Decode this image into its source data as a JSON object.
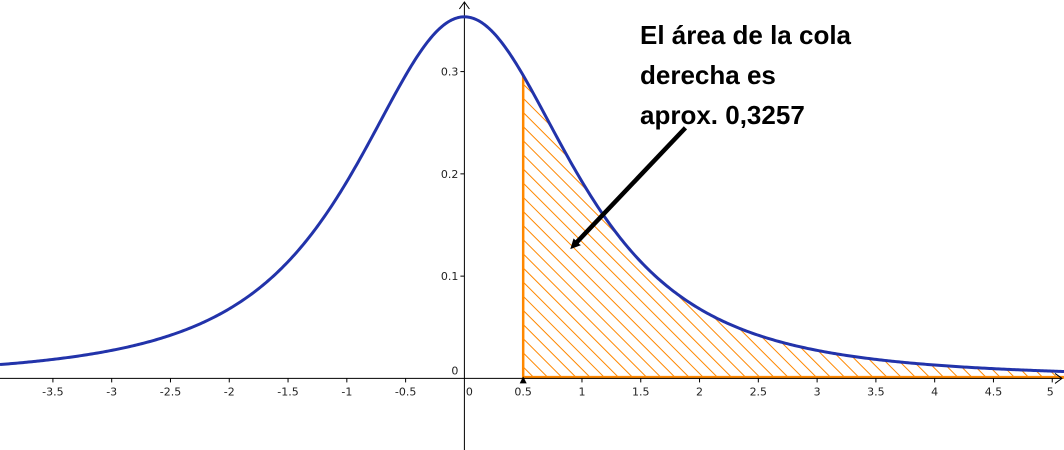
{
  "chart_data": {
    "type": "area",
    "title": "",
    "xlabel": "",
    "ylabel": "",
    "xlim": [
      -3.95,
      5.1
    ],
    "ylim": [
      -0.07,
      0.37
    ],
    "grid": false,
    "curve": {
      "distribution": "Student t",
      "degrees_of_freedom": 2,
      "x_range": [
        -3.95,
        5.1
      ],
      "color": "#2233aa"
    },
    "shaded_region": {
      "x_from": 0.5,
      "x_to": 5.1,
      "tail": "right",
      "area": 0.3257,
      "color": "#ff8800",
      "pattern": "diagonal-hatch"
    },
    "x_ticks": [
      {
        "value": -3.5,
        "label": "-3.5"
      },
      {
        "value": -3,
        "label": "-3"
      },
      {
        "value": -2.5,
        "label": "-2.5"
      },
      {
        "value": -2,
        "label": "-2"
      },
      {
        "value": -1.5,
        "label": "-1.5"
      },
      {
        "value": -1,
        "label": "-1"
      },
      {
        "value": -0.5,
        "label": "-0.5"
      },
      {
        "value": 0,
        "label": "0"
      },
      {
        "value": 0.5,
        "label": "0.5"
      },
      {
        "value": 1,
        "label": "1"
      },
      {
        "value": 1.5,
        "label": "1.5"
      },
      {
        "value": 2,
        "label": "2"
      },
      {
        "value": 2.5,
        "label": "2.5"
      },
      {
        "value": 3,
        "label": "3"
      },
      {
        "value": 3.5,
        "label": "3.5"
      },
      {
        "value": 4,
        "label": "4"
      },
      {
        "value": 4.5,
        "label": "4.5"
      },
      {
        "value": 5,
        "label": "5"
      }
    ],
    "y_ticks": [
      {
        "value": 0,
        "label": "0"
      },
      {
        "value": 0.1,
        "label": "0.1"
      },
      {
        "value": 0.2,
        "label": "0.2"
      },
      {
        "value": 0.3,
        "label": "0.3"
      }
    ],
    "point_marker": {
      "x": 0.5,
      "y": 0
    },
    "annotation": {
      "lines": [
        "El área de la cola",
        "derecha es",
        "aprox. 0,3257"
      ],
      "arrow_from": [
        1.88,
        0.245
      ],
      "arrow_to": [
        0.93,
        0.13
      ]
    },
    "axis_color": "#000000"
  }
}
